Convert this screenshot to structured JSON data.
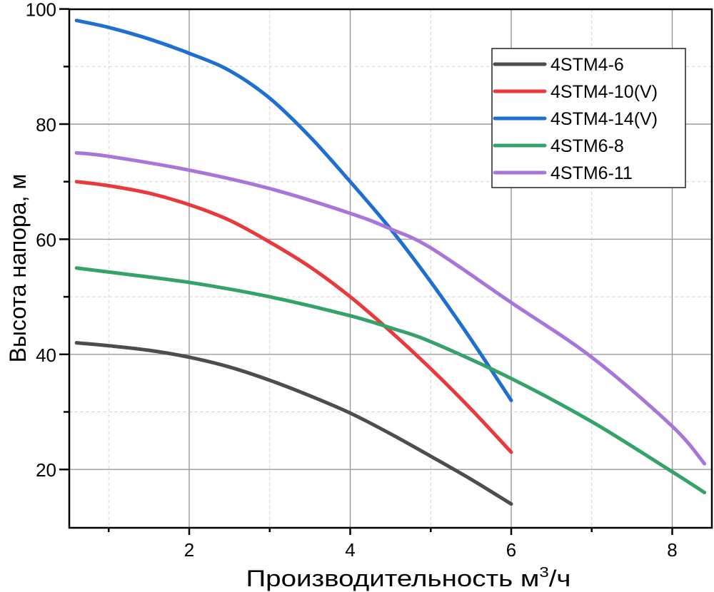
{
  "chart_data": {
    "type": "line",
    "title": "",
    "xlabel": "Производительность м³/ч",
    "xlabel_main": "Производительность м",
    "xlabel_sup": "3",
    "xlabel_tail": "/ч",
    "ylabel": "Высота напора, м",
    "xlim": [
      0.5,
      8.45
    ],
    "ylim": [
      10,
      100
    ],
    "x_ticks": [
      2,
      4,
      6,
      8
    ],
    "x_minor_ticks": [
      1,
      3,
      5,
      7
    ],
    "y_ticks": [
      20,
      40,
      60,
      80,
      100
    ],
    "y_minor_ticks": [
      30,
      50,
      70,
      90
    ],
    "grid": true,
    "legend_position": "upper right",
    "series": [
      {
        "name": "4STM4-6",
        "color": "#4d4d4d",
        "x": [
          0.6,
          1.0,
          1.5,
          2.0,
          2.5,
          3.0,
          3.5,
          4.0,
          4.5,
          5.0,
          5.5,
          6.0
        ],
        "y": [
          42,
          41.5,
          40.7,
          39.5,
          37.8,
          35.5,
          32.8,
          29.8,
          26.2,
          22.3,
          18.3,
          14
        ]
      },
      {
        "name": "4STM4-10(V)",
        "color": "#e8393c",
        "x": [
          0.6,
          1.0,
          1.5,
          2.0,
          2.5,
          3.0,
          3.5,
          4.0,
          4.5,
          5.0,
          5.5,
          6.0
        ],
        "y": [
          70,
          69.3,
          68,
          66,
          63.3,
          59.5,
          55.2,
          50,
          44,
          37.5,
          30.5,
          23
        ]
      },
      {
        "name": "4STM4-14(V)",
        "color": "#1e6fd0",
        "x": [
          0.6,
          1.0,
          1.5,
          2.0,
          2.5,
          3.0,
          3.5,
          4.0,
          4.5,
          5.0,
          5.5,
          6.0
        ],
        "y": [
          98,
          96.8,
          94.8,
          92.3,
          89.3,
          84.5,
          77.8,
          70,
          61.8,
          52.6,
          42.6,
          32
        ]
      },
      {
        "name": "4STM6-8",
        "color": "#34a269",
        "x": [
          0.6,
          1.0,
          2.0,
          3.0,
          4.0,
          4.5,
          5.0,
          6.0,
          7.0,
          8.0,
          8.4
        ],
        "y": [
          55,
          54.3,
          52.5,
          50,
          46.7,
          44.6,
          42.2,
          35.8,
          28.3,
          19.6,
          16
        ]
      },
      {
        "name": "4STM6-11",
        "color": "#a875d8",
        "x": [
          0.6,
          1.0,
          2.0,
          3.0,
          4.0,
          4.5,
          5.0,
          6.0,
          7.0,
          8.0,
          8.4
        ],
        "y": [
          75,
          74.4,
          72,
          68.8,
          64.5,
          61.8,
          58.5,
          49,
          39.5,
          27.5,
          21
        ]
      }
    ]
  }
}
